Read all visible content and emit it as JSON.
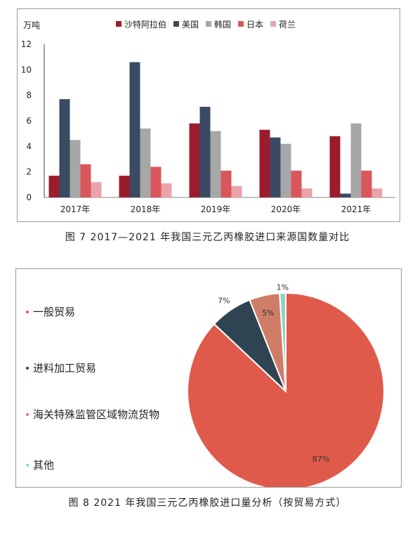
{
  "captions": {
    "fig7": "图 7  2017—2021 年我国三元乙丙橡胶进口来源国数量对比",
    "fig8": "图 8  2021 年我国三元乙丙橡胶进口量分析（按贸易方式）"
  },
  "chart_data": [
    {
      "type": "bar",
      "ylabel": "万吨",
      "ylim": [
        0,
        12
      ],
      "yticks": [
        0,
        2,
        4,
        6,
        8,
        10,
        12
      ],
      "categories": [
        "2017年",
        "2018年",
        "2019年",
        "2020年",
        "2021年"
      ],
      "legend_position": "top",
      "series": [
        {
          "name": "沙特阿拉伯",
          "color": "#9b1c2e",
          "values": [
            1.7,
            1.7,
            5.8,
            5.3,
            4.8
          ]
        },
        {
          "name": "美国",
          "color": "#3b4a63",
          "values": [
            7.7,
            10.6,
            7.1,
            4.7,
            0.3
          ]
        },
        {
          "name": "韩国",
          "color": "#a7a7a7",
          "values": [
            4.5,
            5.4,
            5.2,
            4.2,
            5.8
          ]
        },
        {
          "name": "日本",
          "color": "#d9575a",
          "values": [
            2.6,
            2.4,
            2.1,
            2.1,
            2.1
          ]
        },
        {
          "name": "荷兰",
          "color": "#eaa3a8",
          "values": [
            1.2,
            1.1,
            0.9,
            0.7,
            0.7
          ]
        }
      ]
    },
    {
      "type": "pie",
      "slices": [
        {
          "label": "一般贸易",
          "value": 87,
          "display": "87%",
          "color": "#e05a4b"
        },
        {
          "label": "进料加工贸易",
          "value": 7,
          "display": "7%",
          "color": "#2f4452"
        },
        {
          "label": "海关特殊监管区域物流货物",
          "value": 5,
          "display": "5%",
          "color": "#cf7d67"
        },
        {
          "label": "其他",
          "value": 1,
          "display": "1%",
          "color": "#8fd2c4"
        }
      ],
      "legend_position": "left"
    }
  ]
}
